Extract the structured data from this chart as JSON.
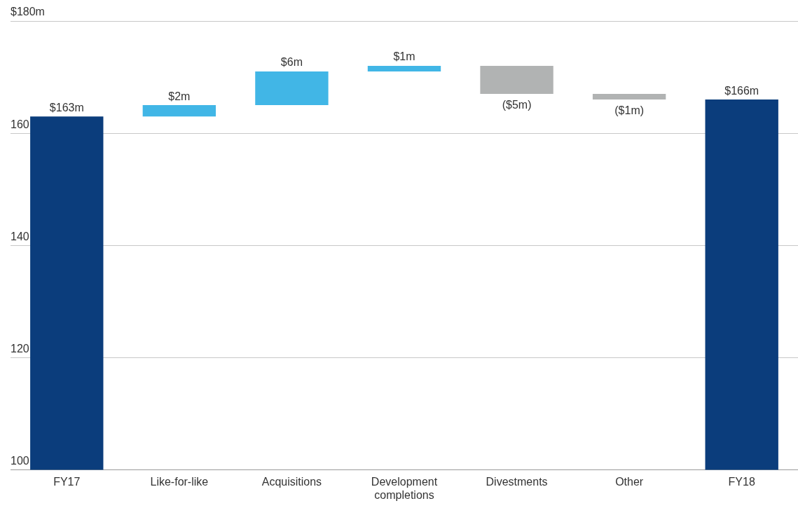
{
  "chart_data": {
    "type": "bar",
    "categories": [
      "FY17",
      "Like-for-like",
      "Acquisitions",
      "Development completions",
      "Divestments",
      "Other",
      "FY18"
    ],
    "base": [
      0,
      163,
      165,
      171,
      172,
      167,
      0
    ],
    "values": [
      163,
      2,
      6,
      1,
      -5,
      -1,
      166
    ],
    "value_labels": [
      "$163m",
      "$2m",
      "$6m",
      "$1m",
      "($5m)",
      "($1m)",
      "$166m"
    ],
    "colors": [
      "#0b3d7c",
      "#41b6e6",
      "#41b6e6",
      "#41b6e6",
      "#b1b3b3",
      "#b1b3b3",
      "#0b3d7c"
    ],
    "ylim": [
      100,
      180
    ],
    "yticks": [
      100,
      120,
      140,
      160,
      {
        "value": 180,
        "label": "$180m"
      }
    ],
    "grid": "y",
    "legend": false
  }
}
